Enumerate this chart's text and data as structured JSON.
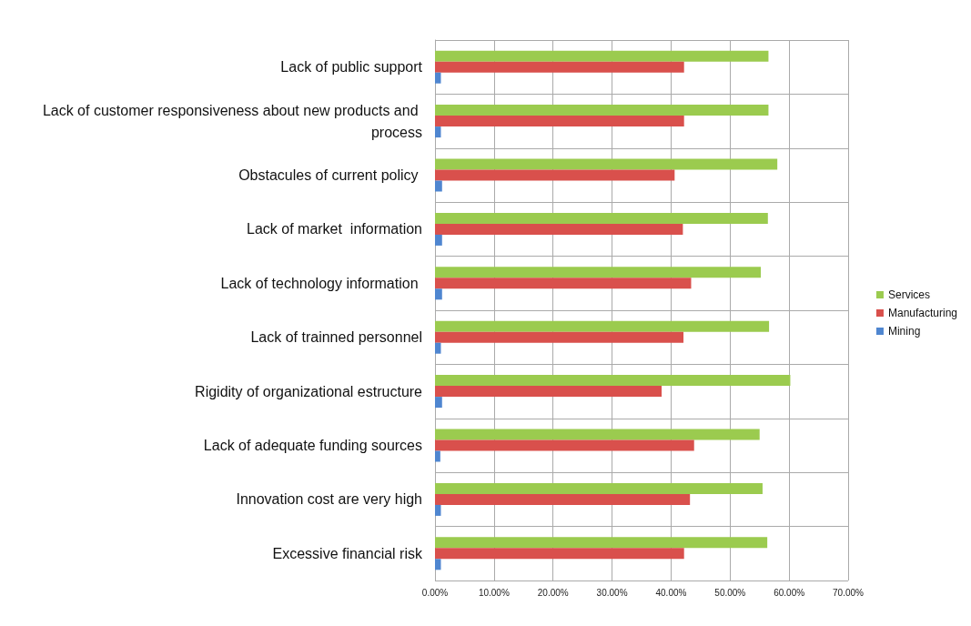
{
  "chart_data": {
    "type": "bar",
    "orientation": "horizontal",
    "categories": [
      "Lack of public support",
      "Lack of customer responsiveness about new products and process",
      "Obstacules of current policy ",
      "Lack of market  information",
      "Lack of technology information ",
      "Lack of trainned personnel",
      "Rigidity of organizational estructure",
      "Lack of adequate funding sources",
      "Innovation cost are very high",
      "Excessive financial risk"
    ],
    "series": [
      {
        "name": "Services",
        "color": "#9bcb4f",
        "values": [
          56.5,
          56.5,
          58.0,
          56.4,
          55.2,
          56.6,
          60.2,
          55.0,
          55.5,
          56.3
        ]
      },
      {
        "name": "Manufacturing",
        "color": "#d9504c",
        "values": [
          42.2,
          42.2,
          40.6,
          42.0,
          43.4,
          42.1,
          38.4,
          43.9,
          43.2,
          42.2
        ]
      },
      {
        "name": "Mining",
        "color": "#4f86d0",
        "values": [
          1.0,
          1.0,
          1.2,
          1.2,
          1.2,
          1.0,
          1.2,
          0.9,
          1.0,
          1.0
        ]
      }
    ],
    "xlim": [
      0,
      70
    ],
    "xticks": [
      {
        "value": 0,
        "label": "0.00%"
      },
      {
        "value": 10,
        "label": "10.00%"
      },
      {
        "value": 20,
        "label": "20.00%"
      },
      {
        "value": 30,
        "label": "30.00%"
      },
      {
        "value": 40,
        "label": "40.00%"
      },
      {
        "value": 50,
        "label": "50.00%"
      },
      {
        "value": 60,
        "label": "60.00%"
      },
      {
        "value": 70,
        "label": "70.00%"
      }
    ],
    "grid": true,
    "legend": "right"
  }
}
